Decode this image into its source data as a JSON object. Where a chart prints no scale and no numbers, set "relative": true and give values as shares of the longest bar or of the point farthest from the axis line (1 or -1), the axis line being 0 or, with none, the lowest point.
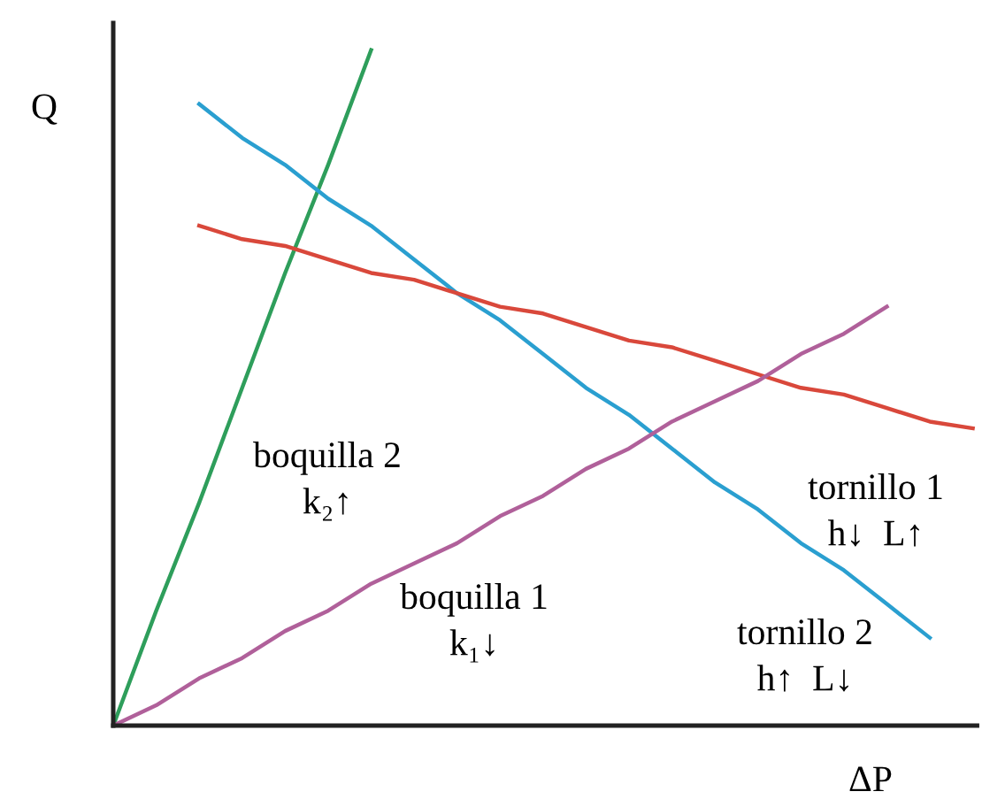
{
  "chart_data": {
    "type": "line",
    "relative": true,
    "xlabel": "ΔP",
    "ylabel": "Q",
    "categories": [
      null,
      null,
      null,
      null,
      null,
      null,
      null,
      null,
      null,
      null,
      null,
      null,
      null,
      null,
      null,
      null,
      null,
      null,
      null,
      null,
      null
    ],
    "series": [
      {
        "color": "#2e9e5b",
        "values": [
          0,
          0.17,
          0.33,
          0.5,
          0.67,
          0.83,
          1.0,
          null,
          null,
          null,
          null,
          null,
          null,
          null,
          null,
          null,
          null,
          null,
          null,
          null,
          null
        ]
      },
      {
        "color": "#2a9fd0",
        "values": [
          null,
          null,
          0.92,
          0.87,
          0.83,
          0.78,
          0.74,
          0.69,
          0.64,
          0.6,
          0.55,
          0.5,
          0.46,
          0.41,
          0.36,
          0.32,
          0.27,
          0.23,
          0.18,
          0.13,
          null
        ]
      },
      {
        "color": "#d9483b",
        "values": [
          null,
          null,
          0.74,
          0.72,
          0.71,
          0.69,
          0.67,
          0.66,
          0.64,
          0.62,
          0.61,
          0.59,
          0.57,
          0.56,
          0.54,
          0.52,
          0.5,
          0.49,
          0.47,
          0.45,
          0.44
        ]
      },
      {
        "color": "#b0609a",
        "values": [
          0,
          0.03,
          0.07,
          0.1,
          0.14,
          0.17,
          0.21,
          0.24,
          0.27,
          0.31,
          0.34,
          0.38,
          0.41,
          0.45,
          0.48,
          0.51,
          0.55,
          0.58,
          0.62,
          null,
          null
        ]
      }
    ],
    "annotations": [
      "boquilla 2\nk₂↑",
      "boquilla 1\nk₁↓",
      "tornillo 1\nh↓  L↑",
      "tornillo 2\nh↑  L↓"
    ],
    "marker": "none",
    "line_style": "solid"
  }
}
